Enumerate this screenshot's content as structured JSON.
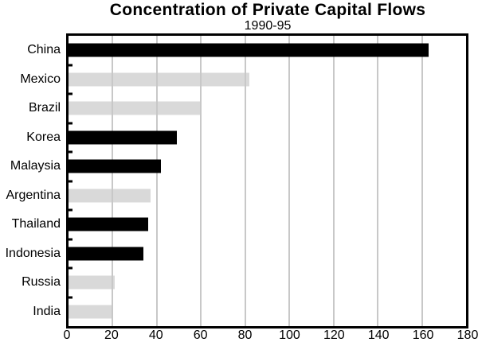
{
  "page": {
    "title": "Concentration of Private Capital Flows",
    "subtitle": "1990-95"
  },
  "chart_data": {
    "type": "bar",
    "orientation": "horizontal",
    "title": "Concentration of Private Capital Flows",
    "subtitle": "1990-95",
    "categories": [
      "China",
      "Mexico",
      "Brazil",
      "Korea",
      "Malaysia",
      "Argentina",
      "Thailand",
      "Indonesia",
      "Russia",
      "India"
    ],
    "values": [
      163,
      82,
      60,
      49,
      42,
      37,
      36,
      34,
      21,
      20
    ],
    "bar_colors": [
      "#000000",
      "#d9d9d9",
      "#d9d9d9",
      "#000000",
      "#000000",
      "#d9d9d9",
      "#000000",
      "#000000",
      "#d9d9d9",
      "#d9d9d9"
    ],
    "bar_color_names": [
      "black",
      "gray",
      "gray",
      "black",
      "black",
      "gray",
      "black",
      "black",
      "gray",
      "gray"
    ],
    "xlabel": "",
    "ylabel": "",
    "xlim": [
      0,
      180
    ],
    "xticks": [
      0,
      20,
      40,
      60,
      80,
      100,
      120,
      140,
      160,
      180
    ],
    "grid": true,
    "gridline_color": "#c8c8c8",
    "frame_color": "#000000",
    "background_color": "#ffffff",
    "legend": "none"
  }
}
